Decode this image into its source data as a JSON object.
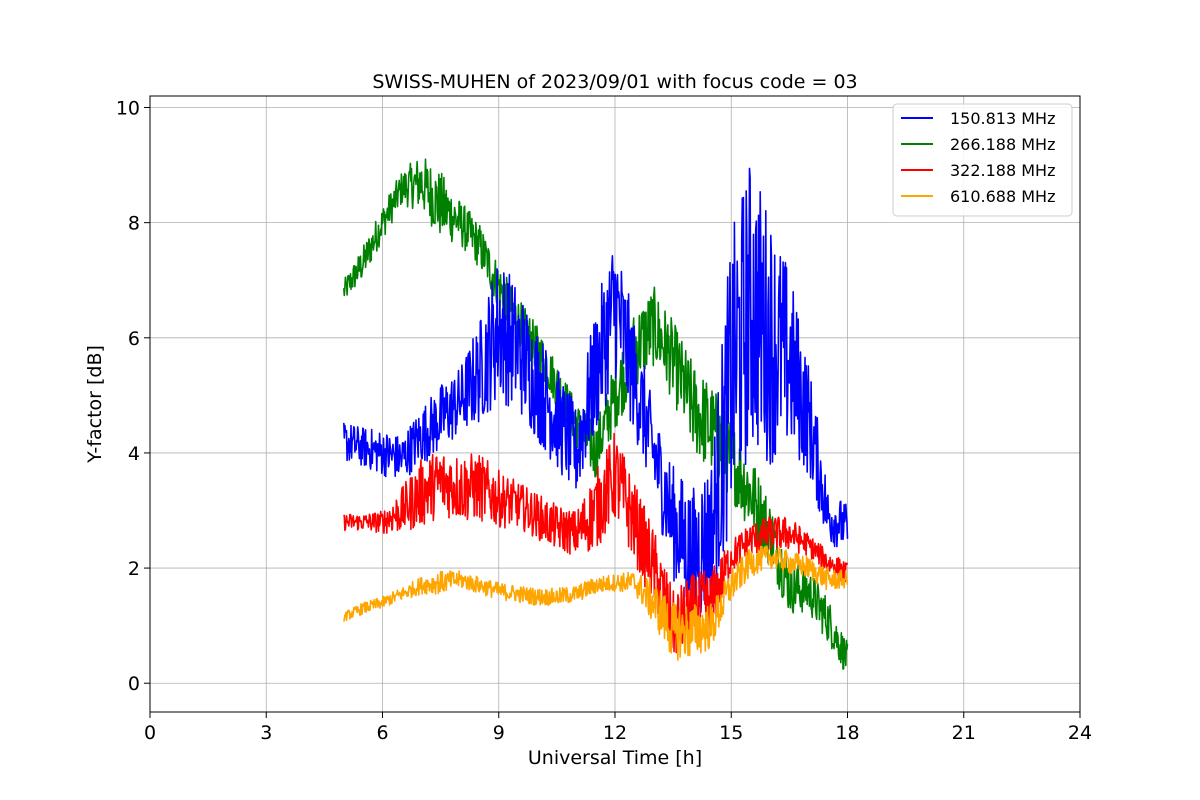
{
  "chart_data": {
    "type": "line",
    "title": "SWISS-MUHEN of 2023/09/01 with focus code = 03",
    "xlabel": "Universal Time [h]",
    "ylabel": "Y-factor [dB]",
    "xlim": [
      0,
      24
    ],
    "ylim": [
      -0.5,
      10.2
    ],
    "xticks": [
      "0",
      "3",
      "6",
      "9",
      "12",
      "15",
      "18",
      "21",
      "24"
    ],
    "yticks": [
      "0",
      "2",
      "4",
      "6",
      "8",
      "10"
    ],
    "grid": true,
    "legend_position": "top-right",
    "series": [
      {
        "name": "150.813 MHz",
        "color": "#0000ff",
        "x": [
          5.0,
          5.5,
          6.0,
          6.5,
          7.0,
          7.5,
          8.0,
          8.5,
          9.0,
          9.5,
          10.0,
          10.5,
          11.0,
          11.5,
          12.0,
          12.5,
          13.0,
          13.5,
          14.0,
          14.5,
          15.0,
          15.5,
          16.0,
          16.5,
          17.0,
          17.5,
          18.0
        ],
        "y": [
          4.2,
          4.1,
          4.0,
          3.9,
          4.3,
          4.6,
          4.9,
          5.4,
          6.2,
          5.8,
          5.2,
          4.6,
          4.0,
          5.4,
          6.6,
          5.3,
          4.0,
          2.8,
          2.2,
          2.6,
          5.3,
          6.6,
          6.0,
          5.6,
          4.6,
          2.9,
          2.7
        ],
        "spread": [
          0.35,
          0.35,
          0.4,
          0.4,
          0.5,
          0.6,
          0.6,
          0.9,
          1.3,
          1.1,
          1.0,
          0.9,
          0.8,
          1.1,
          1.3,
          1.0,
          0.8,
          1.0,
          1.2,
          1.4,
          2.5,
          2.6,
          2.2,
          1.6,
          1.0,
          0.5,
          0.4
        ]
      },
      {
        "name": "266.188 MHz",
        "color": "#008000",
        "x": [
          5.0,
          5.5,
          6.0,
          6.5,
          7.0,
          7.5,
          8.0,
          8.5,
          9.0,
          9.5,
          10.0,
          10.5,
          11.0,
          11.5,
          12.0,
          12.5,
          13.0,
          13.5,
          14.0,
          14.5,
          15.0,
          15.5,
          16.0,
          16.5,
          17.0,
          17.5,
          18.0
        ],
        "y": [
          6.8,
          7.3,
          8.0,
          8.6,
          8.7,
          8.3,
          8.0,
          7.6,
          6.9,
          6.3,
          5.8,
          5.2,
          4.5,
          4.0,
          5.0,
          5.8,
          6.2,
          5.6,
          4.8,
          4.4,
          3.9,
          3.3,
          2.6,
          1.7,
          1.6,
          1.1,
          0.4
        ],
        "spread": [
          0.2,
          0.3,
          0.3,
          0.3,
          0.5,
          0.6,
          0.4,
          0.4,
          0.4,
          0.4,
          0.4,
          0.4,
          0.4,
          0.5,
          0.6,
          0.7,
          0.7,
          0.7,
          0.8,
          0.8,
          0.7,
          0.7,
          0.6,
          0.5,
          0.4,
          0.4,
          0.3
        ]
      },
      {
        "name": "322.188 MHz",
        "color": "#ff0000",
        "x": [
          5.0,
          5.5,
          6.0,
          6.5,
          7.0,
          7.5,
          8.0,
          8.5,
          9.0,
          9.5,
          10.0,
          10.5,
          11.0,
          11.5,
          12.0,
          12.5,
          13.0,
          13.5,
          14.0,
          14.5,
          15.0,
          15.5,
          16.0,
          16.5,
          17.0,
          17.5,
          18.0
        ],
        "y": [
          2.8,
          2.8,
          2.8,
          3.0,
          3.3,
          3.5,
          3.4,
          3.4,
          3.2,
          3.1,
          2.9,
          2.7,
          2.6,
          3.0,
          3.6,
          2.8,
          2.0,
          1.0,
          1.3,
          1.4,
          2.2,
          2.5,
          2.6,
          2.6,
          2.4,
          2.1,
          1.9
        ],
        "spread": [
          0.15,
          0.15,
          0.2,
          0.4,
          0.6,
          0.6,
          0.6,
          0.6,
          0.5,
          0.4,
          0.4,
          0.4,
          0.4,
          0.7,
          0.8,
          0.7,
          0.7,
          0.6,
          0.6,
          0.6,
          0.3,
          0.3,
          0.3,
          0.3,
          0.2,
          0.2,
          0.2
        ]
      },
      {
        "name": "610.688 MHz",
        "color": "#ffa500",
        "x": [
          5.0,
          5.5,
          6.0,
          6.5,
          7.0,
          7.5,
          8.0,
          8.5,
          9.0,
          9.5,
          10.0,
          10.5,
          11.0,
          11.5,
          12.0,
          12.5,
          13.0,
          13.5,
          14.0,
          14.5,
          15.0,
          15.5,
          16.0,
          16.5,
          17.0,
          17.5,
          18.0
        ],
        "y": [
          1.15,
          1.3,
          1.4,
          1.55,
          1.7,
          1.75,
          1.8,
          1.7,
          1.6,
          1.55,
          1.5,
          1.5,
          1.55,
          1.7,
          1.75,
          1.75,
          1.4,
          0.9,
          0.9,
          1.0,
          1.7,
          2.1,
          2.2,
          2.1,
          2.0,
          1.8,
          1.8
        ],
        "spread": [
          0.08,
          0.1,
          0.1,
          0.12,
          0.15,
          0.2,
          0.15,
          0.15,
          0.15,
          0.15,
          0.15,
          0.15,
          0.15,
          0.15,
          0.15,
          0.2,
          0.4,
          0.5,
          0.5,
          0.4,
          0.3,
          0.25,
          0.2,
          0.2,
          0.2,
          0.2,
          0.15
        ]
      }
    ]
  }
}
